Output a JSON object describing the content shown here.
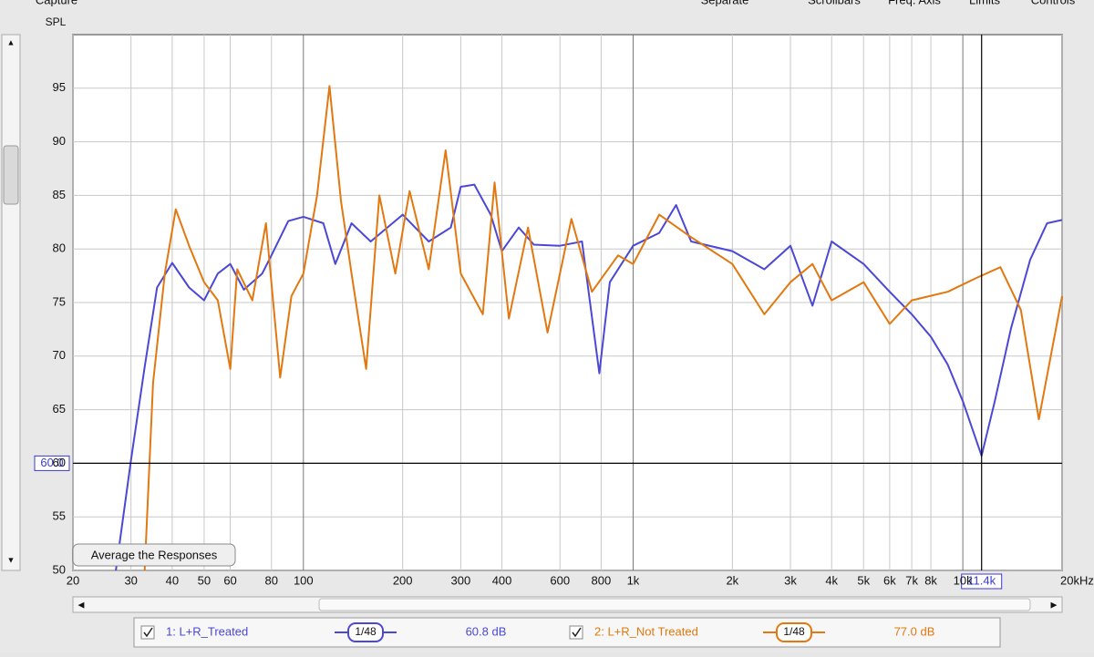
{
  "toolbar": [
    "Capture",
    "Separate",
    "Scrollbars",
    "Freq. Axis",
    "Limits",
    "Controls"
  ],
  "button": "Average the Responses",
  "chart_data": {
    "type": "line",
    "ylabel": "SPL",
    "log_x": true,
    "grid": true,
    "xlim": [
      20,
      20000
    ],
    "ylim": [
      50,
      100
    ],
    "xticks": [
      20,
      30,
      40,
      50,
      60,
      80,
      100,
      200,
      300,
      400,
      600,
      800,
      {
        "value": 1000,
        "label": "1k"
      },
      {
        "value": 2000,
        "label": "2k"
      },
      {
        "value": 3000,
        "label": "3k"
      },
      {
        "value": 4000,
        "label": "4k"
      },
      {
        "value": 5000,
        "label": "5k"
      },
      {
        "value": 6000,
        "label": "6k"
      },
      {
        "value": 7000,
        "label": "7k"
      },
      {
        "value": 8000,
        "label": "8k"
      },
      {
        "value": 10000,
        "label": "10k"
      },
      {
        "value": 20000,
        "label": "20kHz"
      }
    ],
    "yticks": [
      50,
      55,
      60,
      65,
      70,
      75,
      80,
      85,
      90,
      95
    ],
    "cursor": {
      "x": 11400,
      "x_label": "11.4k",
      "y": 60,
      "y_label": "60.0"
    },
    "series": [
      {
        "name": "1: L+R_Treated",
        "color": "#4b48d6",
        "smoothing": "1/48",
        "readout": "60.8 dB",
        "x": [
          27,
          30,
          33,
          36,
          40,
          45,
          50,
          55,
          60,
          66,
          75,
          80,
          90,
          100,
          115,
          125,
          140,
          160,
          200,
          240,
          280,
          300,
          330,
          370,
          400,
          450,
          500,
          600,
          700,
          790,
          850,
          1000,
          1200,
          1350,
          1500,
          2000,
          2500,
          3000,
          3500,
          4000,
          5000,
          6000,
          7000,
          8000,
          9000,
          10000,
          11400,
          12500,
          14000,
          16000,
          18000,
          20000
        ],
        "values": [
          50,
          60.3,
          69,
          76.4,
          78.7,
          76.4,
          75.2,
          77.7,
          78.6,
          76.2,
          77.7,
          79.4,
          82.6,
          83,
          82.4,
          78.6,
          82.4,
          80.7,
          83.2,
          80.7,
          82,
          85.8,
          86,
          83.2,
          79.8,
          82,
          80.4,
          80.3,
          80.7,
          68.4,
          76.9,
          80.3,
          81.5,
          84.1,
          80.7,
          79.8,
          78.1,
          80.3,
          74.7,
          80.7,
          78.6,
          76,
          73.9,
          71.8,
          69.2,
          65.8,
          60.7,
          65.8,
          72.6,
          79,
          82.4,
          82.7
        ]
      },
      {
        "name": "2: L+R_Not Treated",
        "color": "#e2780f",
        "smoothing": "1/48",
        "readout": "77.0 dB",
        "x": [
          33,
          35,
          38,
          41,
          45,
          50,
          55,
          60,
          63,
          70,
          77,
          85,
          92,
          100,
          110,
          120,
          130,
          140,
          155,
          170,
          190,
          210,
          240,
          270,
          300,
          350,
          380,
          420,
          480,
          550,
          650,
          750,
          900,
          1000,
          1200,
          1500,
          2000,
          2500,
          3000,
          3500,
          4000,
          5000,
          6000,
          7000,
          9000,
          11000,
          13000,
          15000,
          17000,
          20000
        ],
        "values": [
          50,
          67.5,
          77.7,
          83.7,
          80.3,
          76.9,
          75.2,
          68.8,
          78.1,
          75.2,
          82.4,
          68,
          75.6,
          77.7,
          85,
          95.2,
          84.5,
          77.7,
          68.8,
          85,
          77.7,
          85.4,
          78.1,
          89.2,
          77.7,
          73.9,
          86.2,
          73.5,
          82,
          72.2,
          82.8,
          76,
          79.4,
          78.6,
          83.2,
          81.1,
          78.6,
          73.9,
          76.9,
          78.6,
          75.2,
          76.9,
          73,
          75.2,
          76,
          77.3,
          78.3,
          74.3,
          64.1,
          75.6
        ]
      }
    ]
  }
}
